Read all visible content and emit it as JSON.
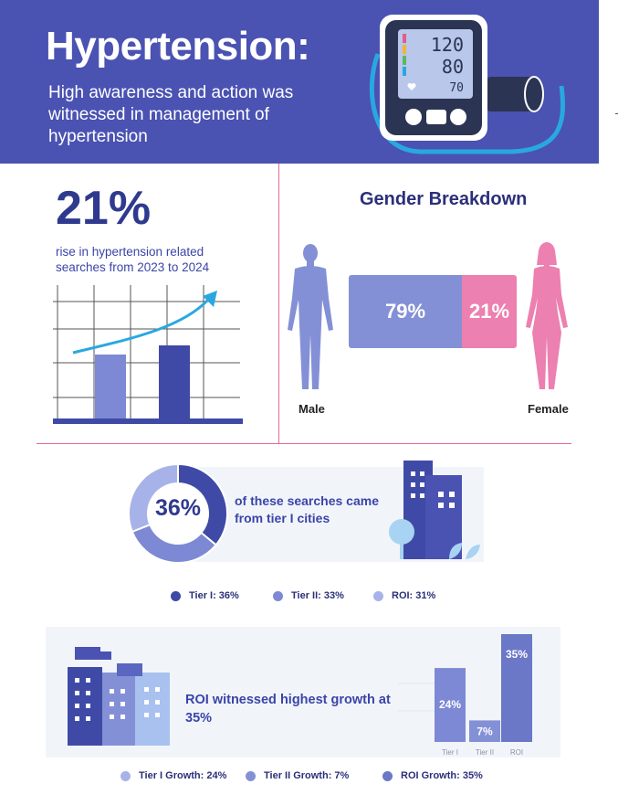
{
  "header": {
    "title": "Hypertension:",
    "subtitle": "High awareness and action was witnessed in management of hypertension",
    "monitor": {
      "systolic": "120",
      "diastolic": "80",
      "pulse": "70"
    }
  },
  "searches": {
    "percent": "21%",
    "description": "rise in hypertension related searches from 2023 to 2024"
  },
  "gender": {
    "title": "Gender Breakdown",
    "male_label": "Male",
    "female_label": "Female",
    "male_percent": "79%",
    "female_percent": "21%"
  },
  "tiers": {
    "donut_label": "36%",
    "text": "of these searches came from tier I cities",
    "legend": [
      {
        "label": "Tier I: 36%",
        "color": "#3f4aa6"
      },
      {
        "label": "Tier II: 33%",
        "color": "#7d89d4"
      },
      {
        "label": "ROI: 31%",
        "color": "#a7b3e8"
      }
    ]
  },
  "growth": {
    "text": "ROI witnessed highest growth at 35%",
    "legend": [
      {
        "label": "Tier I Growth: 24%",
        "color": "#a7b3e8"
      },
      {
        "label": "Tier II Growth: 7%",
        "color": "#8490d6"
      },
      {
        "label": "ROI Growth: 35%",
        "color": "#6b77c7"
      }
    ]
  },
  "chart_data": [
    {
      "type": "pie",
      "categories": [
        "Tier I",
        "Tier II",
        "ROI"
      ],
      "values": [
        36,
        33,
        31
      ],
      "title": ""
    },
    {
      "type": "bar",
      "categories": [
        "Tier I",
        "Tier II",
        "ROI"
      ],
      "values": [
        24,
        7,
        35
      ],
      "data_labels": [
        "24%",
        "7%",
        "35%"
      ],
      "title": ""
    }
  ],
  "colors": {
    "header_bg": "#4a52b2",
    "primary": "#3f4aa6",
    "accent_pink": "#ec80b0",
    "divider": "#e26b97"
  }
}
